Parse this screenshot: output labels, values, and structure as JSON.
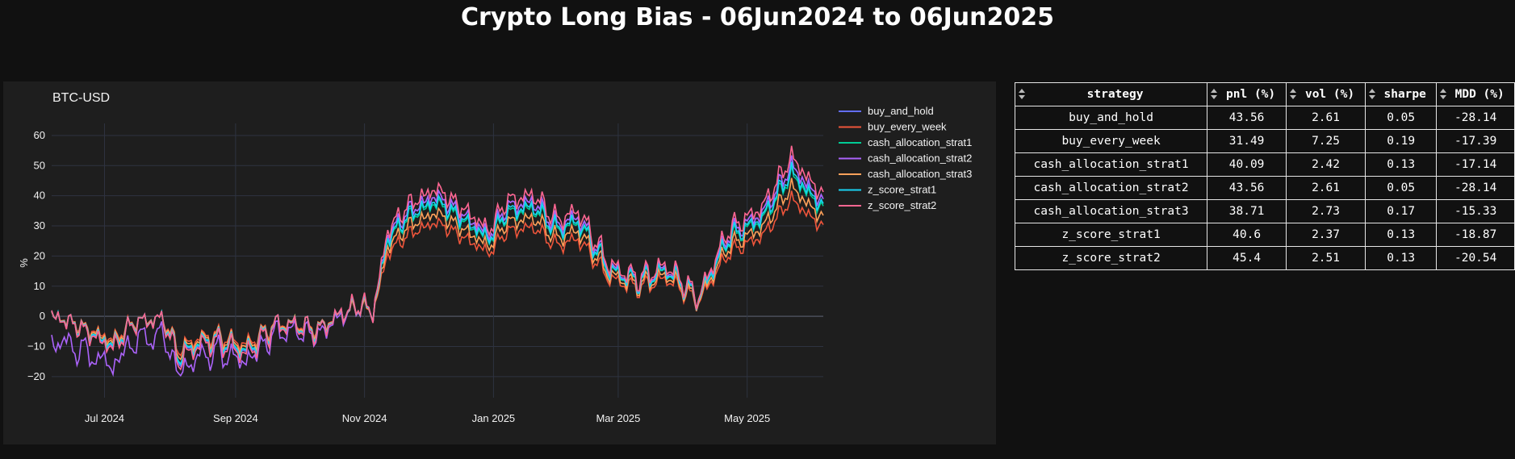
{
  "page": {
    "title": "Crypto Long Bias - 06Jun2024 to 06Jun2025"
  },
  "chart_data": {
    "type": "line",
    "title": "BTC-USD",
    "xlabel": "",
    "ylabel": "%",
    "ylim": [
      -27,
      64
    ],
    "yticks": [
      -20,
      -10,
      0,
      10,
      20,
      30,
      40,
      50,
      60
    ],
    "ytick_labels": [
      "−20",
      "−10",
      "0",
      "10",
      "20",
      "30",
      "40",
      "50",
      "60"
    ],
    "xlim": [
      "2024-06-06",
      "2025-06-06"
    ],
    "xticks": [
      "2024-07-01",
      "2024-09-01",
      "2024-11-01",
      "2025-01-01",
      "2025-03-01",
      "2025-05-01"
    ],
    "xtick_labels": [
      "Jul 2024",
      "Sep 2024",
      "Nov 2024",
      "Jan 2025",
      "Mar 2025",
      "May 2025"
    ],
    "grid": true,
    "legend_position": "top-right",
    "base": {
      "x": [
        "2024-06-06",
        "2024-06-15",
        "2024-06-25",
        "2024-07-05",
        "2024-07-15",
        "2024-07-29",
        "2024-08-05",
        "2024-08-15",
        "2024-08-24",
        "2024-09-06",
        "2024-09-20",
        "2024-09-30",
        "2024-10-10",
        "2024-10-21",
        "2024-10-31",
        "2024-11-05",
        "2024-11-12",
        "2024-11-22",
        "2024-12-05",
        "2024-12-17",
        "2024-12-30",
        "2025-01-07",
        "2025-01-20",
        "2025-01-31",
        "2025-02-10",
        "2025-02-25",
        "2025-03-10",
        "2025-03-24",
        "2025-04-08",
        "2025-04-22",
        "2025-05-08",
        "2025-05-22",
        "2025-05-30",
        "2025-06-06"
      ],
      "y": [
        0,
        -2,
        -6,
        -10,
        -2,
        -1,
        -14,
        -9,
        -8,
        -12,
        -3,
        -3,
        -5,
        1,
        4,
        1,
        27,
        35,
        40,
        34,
        27,
        36,
        38,
        30,
        33,
        16,
        12,
        16,
        6,
        27,
        34,
        50,
        43,
        38
      ]
    },
    "series": [
      {
        "name": "buy_and_hold",
        "color": "#636efa",
        "scale": 1.0,
        "wiggle": 0.0
      },
      {
        "name": "buy_every_week",
        "color": "#ef553b",
        "scale": 0.78,
        "wiggle": 0.0
      },
      {
        "name": "cash_allocation_strat1",
        "color": "#00cc96",
        "scale": 0.94,
        "wiggle": 0.0
      },
      {
        "name": "cash_allocation_strat2",
        "color": "#ab63fa",
        "scale": 1.0,
        "wiggle": 1.0
      },
      {
        "name": "cash_allocation_strat3",
        "color": "#ffa15a",
        "scale": 0.86,
        "wiggle": 0.0
      },
      {
        "name": "z_score_strat1",
        "color": "#19d3f3",
        "scale": 0.96,
        "wiggle": 0.0
      },
      {
        "name": "z_score_strat2",
        "color": "#ff6692",
        "scale": 1.06,
        "wiggle": 0.0
      }
    ]
  },
  "table": {
    "columns": [
      "strategy",
      "pnl (%)",
      "vol (%)",
      "sharpe",
      "MDD (%)"
    ],
    "rows": [
      [
        "buy_and_hold",
        "43.56",
        "2.61",
        "0.05",
        "-28.14"
      ],
      [
        "buy_every_week",
        "31.49",
        "7.25",
        "0.19",
        "-17.39"
      ],
      [
        "cash_allocation_strat1",
        "40.09",
        "2.42",
        "0.13",
        "-17.14"
      ],
      [
        "cash_allocation_strat2",
        "43.56",
        "2.61",
        "0.05",
        "-28.14"
      ],
      [
        "cash_allocation_strat3",
        "38.71",
        "2.73",
        "0.17",
        "-15.33"
      ],
      [
        "z_score_strat1",
        "40.6",
        "2.37",
        "0.13",
        "-18.87"
      ],
      [
        "z_score_strat2",
        "45.4",
        "2.51",
        "0.13",
        "-20.54"
      ]
    ]
  }
}
